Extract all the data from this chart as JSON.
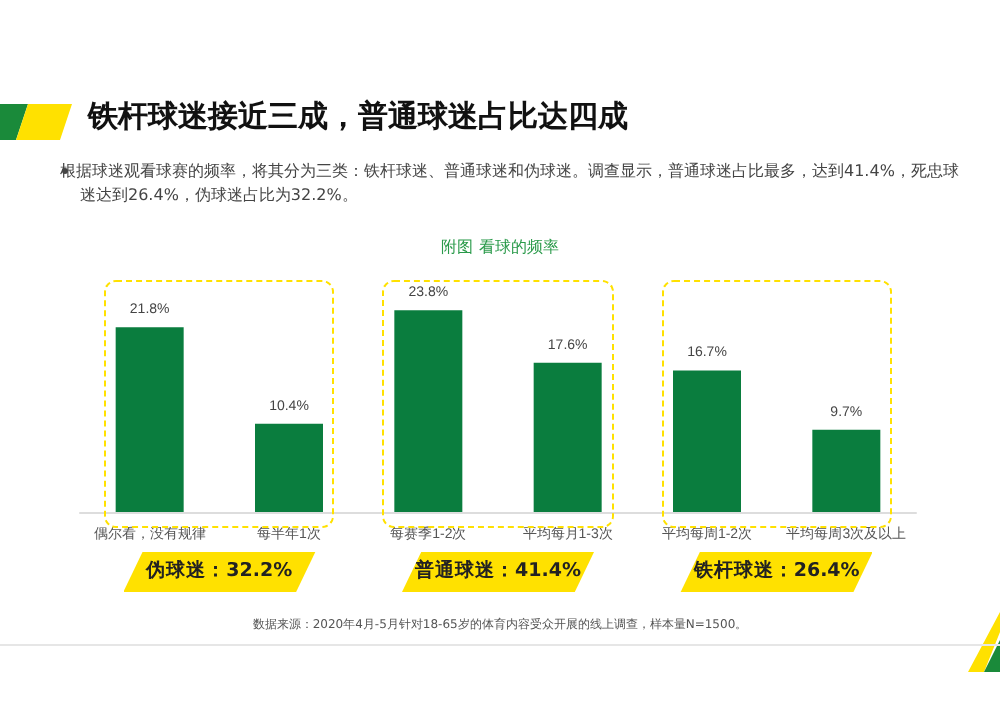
{
  "chart_data": {
    "type": "bar",
    "title": "铁杆球迷接近三成，普通球迷占比达四成",
    "subtitle": "根据球迷观看球赛的频率，将其分为三类：铁杆球迷、普通球迷和伪球迷。调查显示，普通球迷占比最多，达到41.4%，死忠球迷达到26.4%，伪球迷占比为32.2%。",
    "xlabel": "附图  看球的频率",
    "categories": [
      "偶尔看，没有规律",
      "每半年1次",
      "每赛季1-2次",
      "平均每月1-3次",
      "平均每周1-2次",
      "平均每周3次及以上"
    ],
    "values": [
      21.8,
      10.4,
      23.8,
      17.6,
      16.7,
      9.7
    ],
    "color": "#0a7d3e",
    "value_labels": [
      "21.8%",
      "10.4%",
      "23.8%",
      "17.6%",
      "16.7%",
      "9.7%"
    ],
    "annotations": [
      "伪球迷：32.2%",
      "普通球迷：41.4%",
      "铁杆球迷：26.4%",
      "数据来源：2020年4月-5月针对18-65岁的体育内容受众开展的线上调查，样本量N=1500。"
    ]
  }
}
